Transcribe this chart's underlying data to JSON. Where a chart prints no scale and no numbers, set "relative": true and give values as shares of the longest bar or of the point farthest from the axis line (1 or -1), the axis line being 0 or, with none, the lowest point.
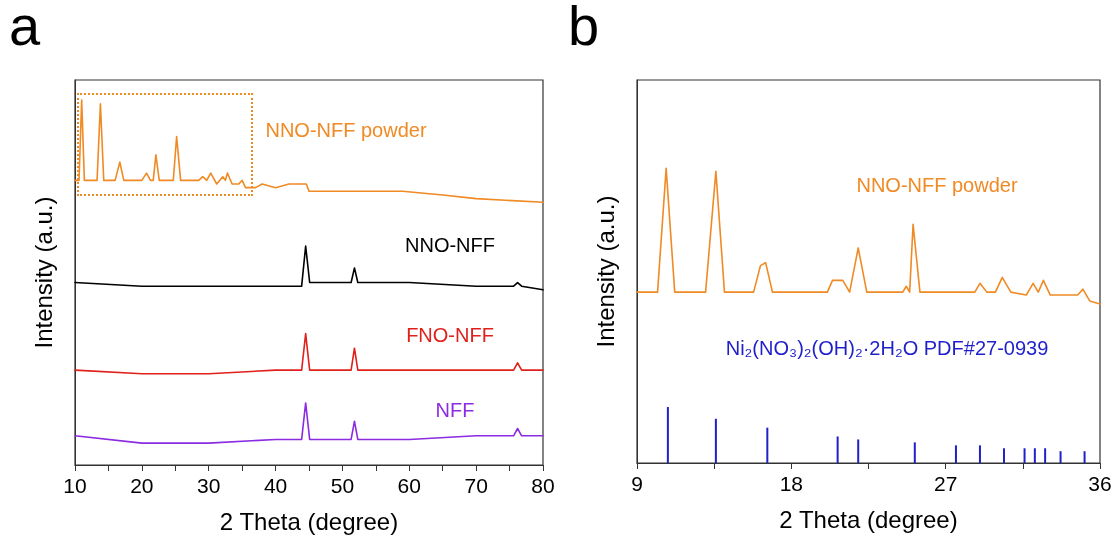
{
  "chart_data": [
    {
      "type": "line",
      "title": "a",
      "xlabel": "2 Theta (degree)",
      "ylabel": "Intensity (a.u.)",
      "relative": true,
      "tick_labels": "x",
      "grid": false,
      "legend": false,
      "marker": "none",
      "line_style": "solid",
      "xlim": [
        10,
        80
      ],
      "xticks": [
        10,
        {
          "value": 15,
          "label": null
        },
        20,
        {
          "value": 25,
          "label": null
        },
        30,
        {
          "value": 35,
          "label": null
        },
        40,
        {
          "value": 45,
          "label": null
        },
        50,
        {
          "value": 55,
          "label": null
        },
        60,
        {
          "value": 65,
          "label": null
        },
        70,
        {
          "value": 75,
          "label": null
        },
        80
      ],
      "series": [
        {
          "name": "NNO-NFF powder",
          "color": "#f08a24",
          "x": [
            10,
            10.6,
            11.0,
            11.4,
            12.5,
            13.3,
            13.8,
            14.3,
            16.0,
            16.7,
            17.3,
            20.0,
            20.7,
            21.3,
            21.7,
            22.1,
            22.6,
            24.7,
            25.2,
            25.8,
            28.5,
            29.1,
            29.7,
            30.3,
            31.2,
            32.1,
            32.5,
            32.8,
            33.5,
            34.5,
            35.0,
            35.5,
            37,
            38,
            40,
            42,
            44.6,
            45,
            50,
            58,
            59,
            65,
            70,
            80
          ],
          "values": [
            0.78,
            0.78,
            1.0,
            0.78,
            0.78,
            0.78,
            0.99,
            0.78,
            0.78,
            0.83,
            0.78,
            0.78,
            0.8,
            0.78,
            0.78,
            0.85,
            0.78,
            0.78,
            0.9,
            0.78,
            0.78,
            0.79,
            0.78,
            0.8,
            0.77,
            0.79,
            0.78,
            0.8,
            0.77,
            0.77,
            0.78,
            0.76,
            0.76,
            0.77,
            0.76,
            0.77,
            0.77,
            0.75,
            0.75,
            0.75,
            0.75,
            0.74,
            0.73,
            0.72
          ]
        },
        {
          "name": "NNO-NFF",
          "color": "#000000",
          "x": [
            10,
            20,
            30,
            40,
            43.9,
            44.5,
            45.1,
            51.3,
            51.8,
            52.3,
            60,
            70,
            75.6,
            76.2,
            76.8,
            80
          ],
          "values": [
            0.5,
            0.49,
            0.49,
            0.49,
            0.49,
            0.6,
            0.5,
            0.5,
            0.54,
            0.5,
            0.5,
            0.49,
            0.49,
            0.5,
            0.49,
            0.48
          ]
        },
        {
          "name": "FNO-NFF",
          "color": "#e0201b",
          "x": [
            10,
            20,
            30,
            40,
            43.9,
            44.5,
            45.1,
            51.3,
            51.8,
            52.3,
            60,
            70,
            75.6,
            76.2,
            76.8,
            80
          ],
          "values": [
            0.26,
            0.25,
            0.25,
            0.26,
            0.26,
            0.36,
            0.26,
            0.26,
            0.32,
            0.26,
            0.26,
            0.26,
            0.26,
            0.28,
            0.26,
            0.26
          ]
        },
        {
          "name": "NFF",
          "color": "#8b2be2",
          "x": [
            10,
            20,
            30,
            40,
            43.9,
            44.5,
            45.1,
            51.3,
            51.8,
            52.3,
            60,
            70,
            75.6,
            76.2,
            76.8,
            80
          ],
          "values": [
            0.08,
            0.06,
            0.06,
            0.07,
            0.07,
            0.17,
            0.07,
            0.07,
            0.12,
            0.07,
            0.07,
            0.08,
            0.08,
            0.1,
            0.08,
            0.08
          ]
        }
      ]
    },
    {
      "type": "line",
      "title": "b",
      "xlabel": "2 Theta (degree)",
      "ylabel": "Intensity (a.u.)",
      "relative": true,
      "tick_labels": "x",
      "grid": false,
      "legend": false,
      "marker": "none",
      "line_style": "solid",
      "xlim": [
        9,
        36
      ],
      "xticks": [
        9,
        {
          "value": 13.5,
          "label": null
        },
        18,
        {
          "value": 22.5,
          "label": null
        },
        27,
        {
          "value": 31.5,
          "label": null
        },
        36
      ],
      "series": [
        {
          "name": "NNO-NFF powder",
          "color": "#f08a24",
          "x": [
            9,
            10.2,
            10.7,
            11.2,
            13.0,
            13.6,
            14.1,
            15.8,
            16.2,
            16.5,
            16.9,
            20.1,
            20.4,
            20.7,
            21.0,
            21.4,
            21.9,
            22.4,
            24.5,
            24.7,
            24.9,
            25.1,
            25.5,
            28.7,
            29.0,
            29.4,
            29.9,
            30.3,
            30.8,
            31.7,
            32.1,
            32.4,
            32.7,
            33.1,
            34.7,
            35.0,
            35.4,
            36
          ],
          "values": [
            0.58,
            0.58,
            1.0,
            0.58,
            0.58,
            0.99,
            0.58,
            0.58,
            0.67,
            0.68,
            0.58,
            0.58,
            0.62,
            0.62,
            0.62,
            0.58,
            0.73,
            0.58,
            0.58,
            0.6,
            0.58,
            0.81,
            0.58,
            0.58,
            0.61,
            0.58,
            0.58,
            0.63,
            0.58,
            0.57,
            0.61,
            0.58,
            0.62,
            0.57,
            0.57,
            0.59,
            0.55,
            0.54
          ]
        },
        {
          "name": "Ni₂(NO₃)₂(OH)₂·2H₂O PDF#27-0939",
          "type": "bar",
          "color": "#1f1fcc",
          "x": [
            10.8,
            13.6,
            16.6,
            20.7,
            21.9,
            25.2,
            27.6,
            29.0,
            30.4,
            31.6,
            32.2,
            32.8,
            33.7,
            35.1
          ],
          "values": [
            0.19,
            0.15,
            0.12,
            0.09,
            0.08,
            0.07,
            0.06,
            0.06,
            0.05,
            0.05,
            0.05,
            0.05,
            0.04,
            0.04
          ]
        }
      ]
    }
  ]
}
